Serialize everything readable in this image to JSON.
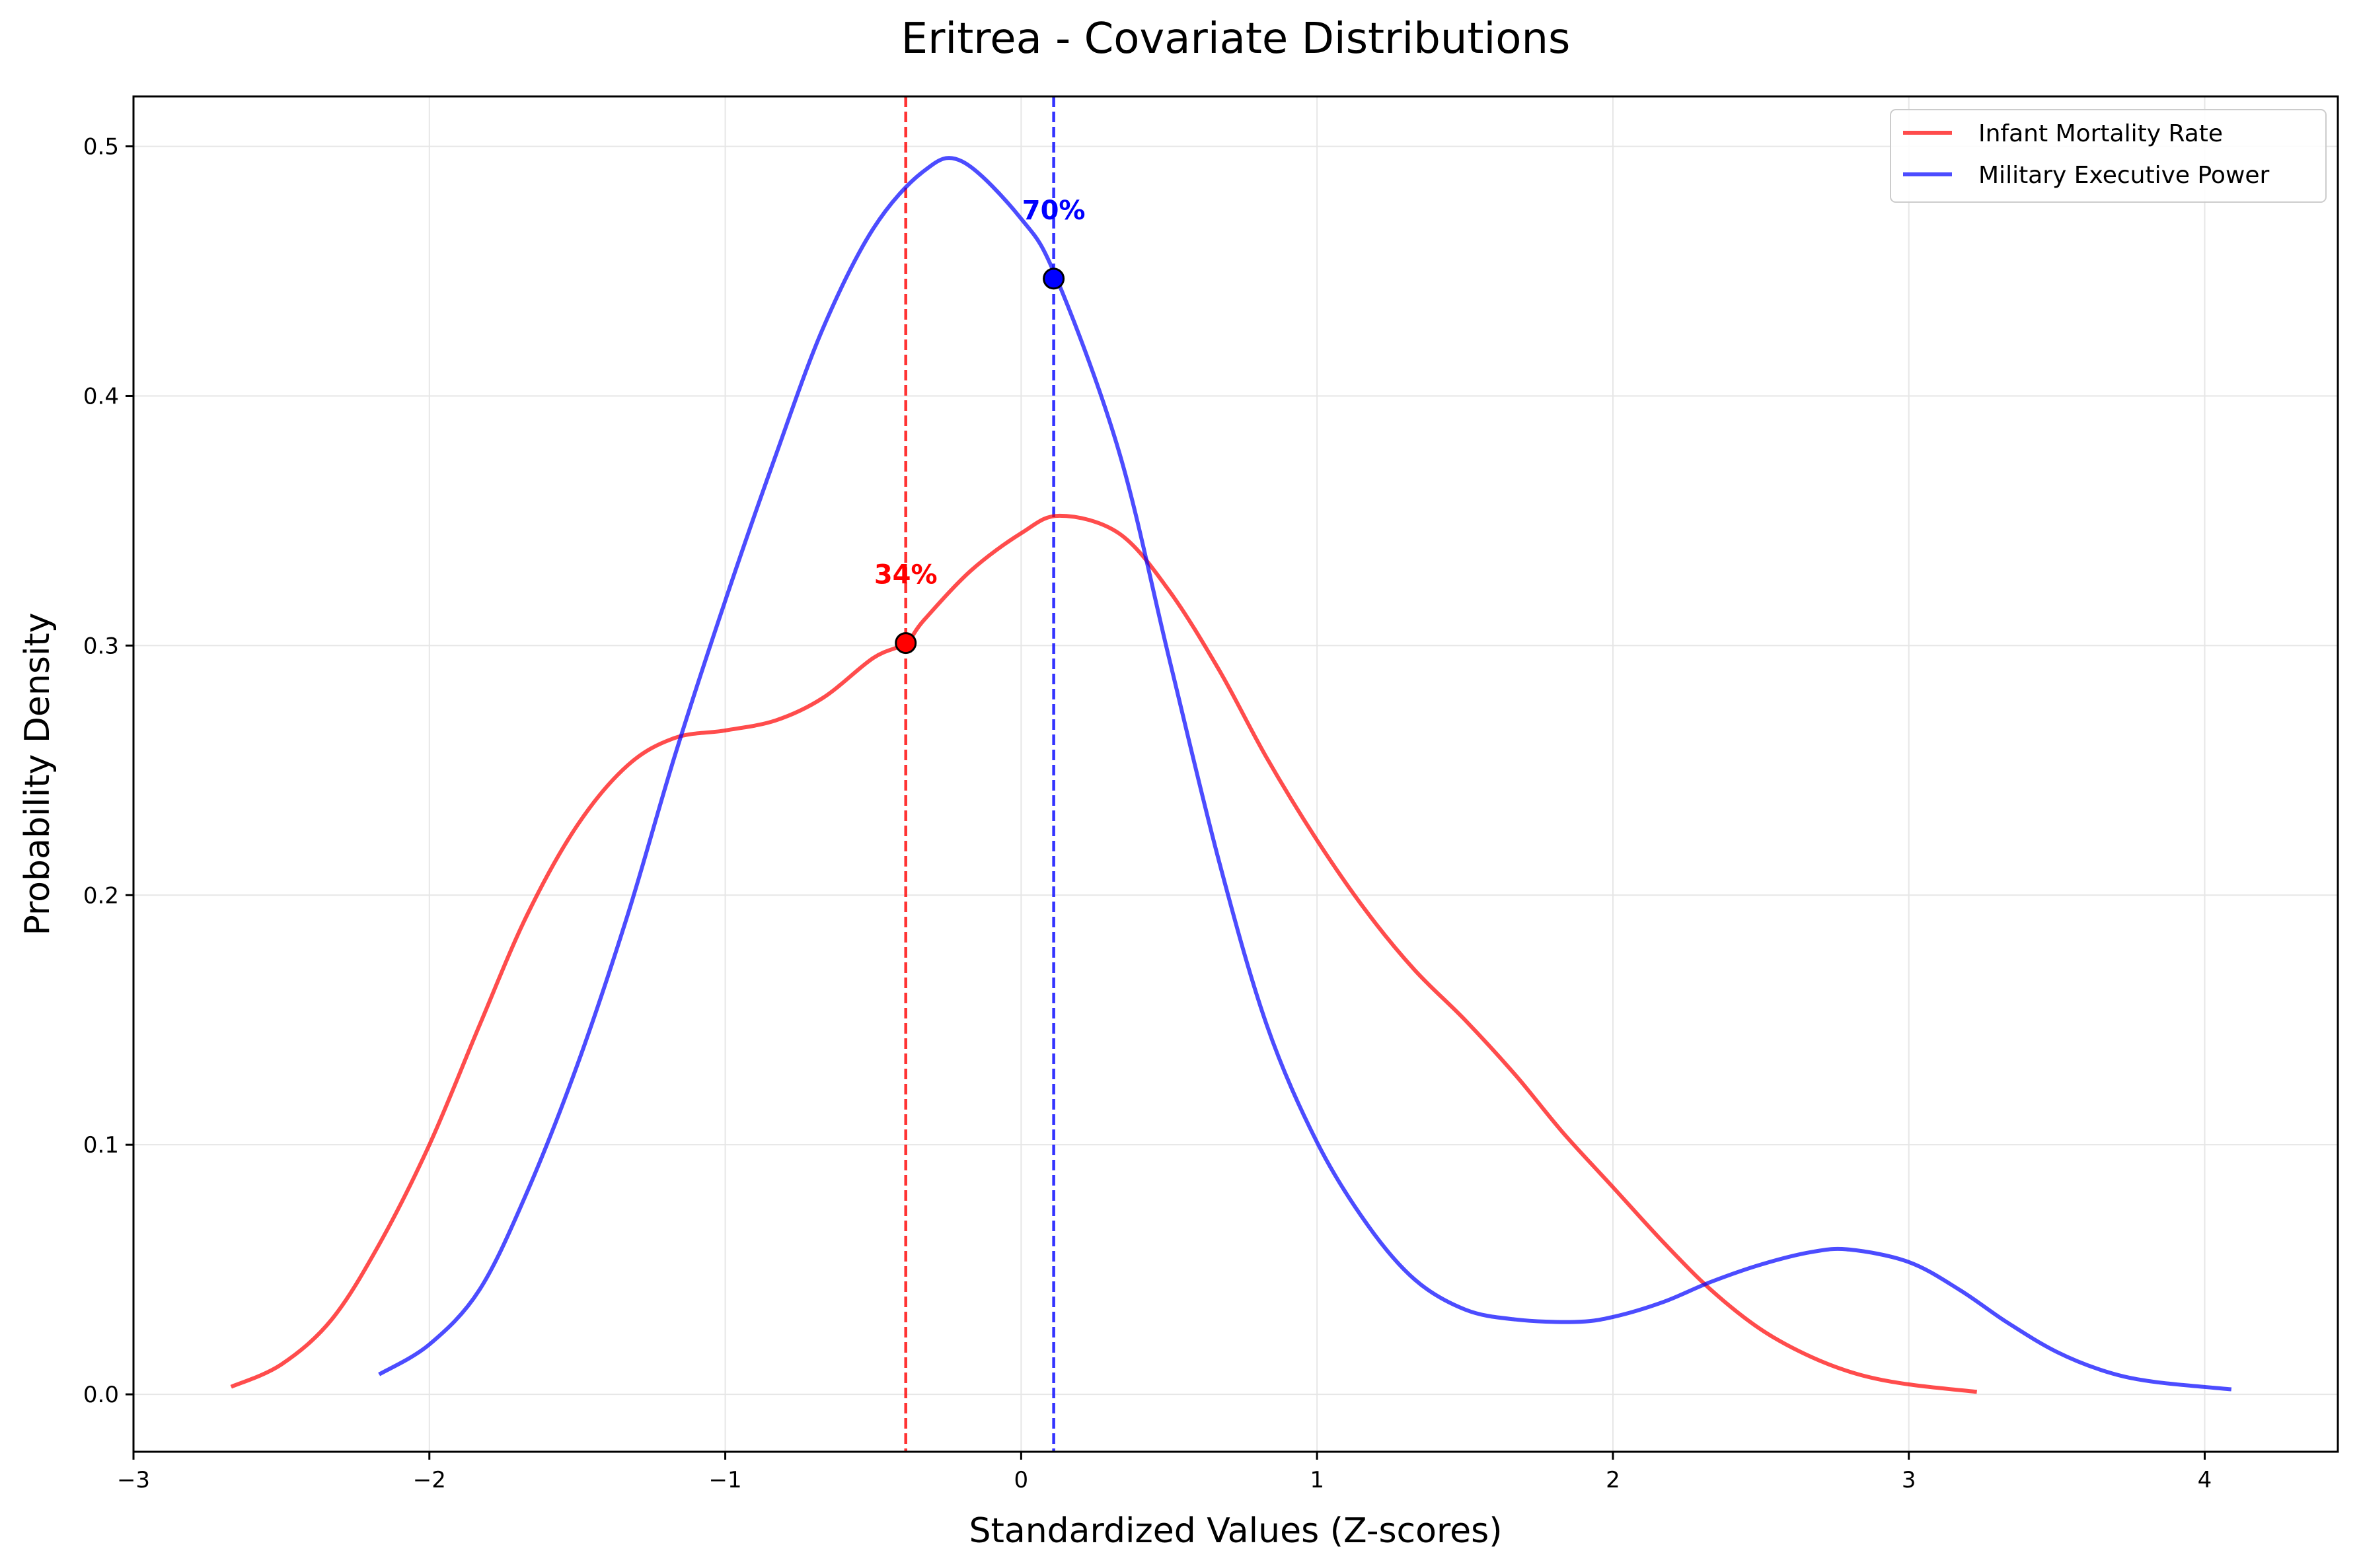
{
  "chart_data": {
    "type": "line",
    "title": "Eritrea - Covariate Distributions",
    "xlabel": "Standardized Values (Z-scores)",
    "ylabel": "Probability Density",
    "xlim": [
      -3,
      4.45
    ],
    "ylim": [
      -0.023,
      0.52
    ],
    "x_ticks": [
      -3,
      -2,
      -1,
      0,
      1,
      2,
      3,
      4
    ],
    "x_tick_labels": [
      "−3",
      "−2",
      "−1",
      "0",
      "1",
      "2",
      "3",
      "4"
    ],
    "y_ticks": [
      0.0,
      0.1,
      0.2,
      0.3,
      0.4,
      0.5
    ],
    "y_tick_labels": [
      "0.0",
      "0.1",
      "0.2",
      "0.3",
      "0.4",
      "0.5"
    ],
    "grid": true,
    "legend_position": "top-right",
    "series": [
      {
        "name": "Infant Mortality Rate",
        "color": "#ff0000",
        "x": [
          -2.67,
          -2.5,
          -2.33,
          -2.17,
          -2.0,
          -1.83,
          -1.67,
          -1.5,
          -1.33,
          -1.17,
          -1.0,
          -0.83,
          -0.67,
          -0.5,
          -0.39,
          -0.33,
          -0.17,
          0.0,
          0.13,
          0.33,
          0.5,
          0.67,
          0.83,
          1.0,
          1.17,
          1.33,
          1.5,
          1.67,
          1.83,
          2.0,
          2.17,
          2.33,
          2.5,
          2.67,
          2.83,
          3.0,
          3.23
        ],
        "y": [
          0.003,
          0.012,
          0.03,
          0.06,
          0.1,
          0.148,
          0.192,
          0.228,
          0.252,
          0.263,
          0.266,
          0.27,
          0.279,
          0.295,
          0.301,
          0.31,
          0.33,
          0.345,
          0.352,
          0.345,
          0.322,
          0.29,
          0.255,
          0.222,
          0.193,
          0.17,
          0.15,
          0.128,
          0.105,
          0.083,
          0.061,
          0.042,
          0.026,
          0.015,
          0.008,
          0.004,
          0.001
        ]
      },
      {
        "name": "Military Executive Power",
        "color": "#0000ff",
        "x": [
          -2.17,
          -2.0,
          -1.83,
          -1.67,
          -1.5,
          -1.33,
          -1.17,
          -1.0,
          -0.83,
          -0.67,
          -0.5,
          -0.33,
          -0.2,
          0.0,
          0.12,
          0.33,
          0.5,
          0.67,
          0.83,
          1.0,
          1.17,
          1.33,
          1.5,
          1.67,
          1.87,
          2.0,
          2.17,
          2.33,
          2.5,
          2.67,
          2.8,
          3.0,
          3.17,
          3.33,
          3.5,
          3.67,
          3.83,
          4.09
        ],
        "y": [
          0.008,
          0.02,
          0.042,
          0.081,
          0.132,
          0.192,
          0.256,
          0.318,
          0.376,
          0.427,
          0.467,
          0.49,
          0.494,
          0.471,
          0.447,
          0.378,
          0.295,
          0.213,
          0.148,
          0.101,
          0.068,
          0.046,
          0.034,
          0.03,
          0.029,
          0.031,
          0.037,
          0.045,
          0.052,
          0.057,
          0.058,
          0.053,
          0.042,
          0.029,
          0.017,
          0.009,
          0.005,
          0.002
        ]
      }
    ],
    "markers": [
      {
        "series": "Infant Mortality Rate",
        "x": -0.39,
        "y": 0.301,
        "label": "34%",
        "color": "#ff0000"
      },
      {
        "series": "Military Executive Power",
        "x": 0.11,
        "y": 0.447,
        "label": "70%",
        "color": "#0000ff"
      }
    ]
  }
}
